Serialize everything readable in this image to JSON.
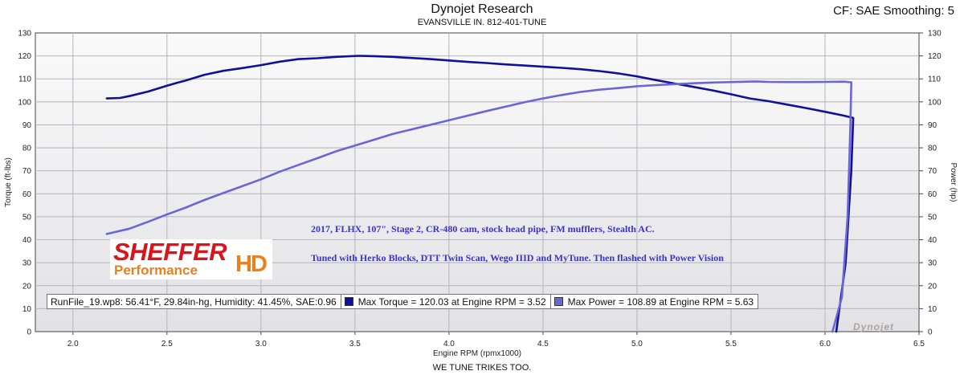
{
  "header": {
    "title": "Dynojet Research",
    "subtitle": "EVANSVILLE IN. 812-401-TUNE",
    "cf_label": "CF: SAE Smoothing: 5"
  },
  "footer": {
    "text": "WE TUNE TRIKES TOO."
  },
  "annotations": {
    "line1": "2017, FLHX, 107\", Stage 2, CR-480 cam, stock head pipe, FM mufflers, Stealth AC.",
    "line2": "Tuned with Herko Blocks, DTT Twin Scan, Wego IIID and MyTune. Then flashed with Power Vision"
  },
  "logo": {
    "sheffer": "SHEFFER",
    "performance": "Performance",
    "hd": "HD"
  },
  "watermark": "Dynojet",
  "legend": {
    "runfile": "RunFile_19.wp8: 56.41°F, 29.84in-hg, Humidity: 41.45%, SAE:0.96",
    "torque": "Max Torque = 120.03 at Engine RPM = 3.52",
    "power": "Max Power = 108.89 at Engine RPM = 5.63"
  },
  "colors": {
    "torque": "#10109a",
    "power": "#6a66d8",
    "plot_bg_top": "#fafafa",
    "plot_bg_bottom": "#e2e2e6"
  },
  "chart_data": {
    "type": "line",
    "xlabel": "Engine RPM (rpmx1000)",
    "ylabel": "Torque (ft-lbs)",
    "y2label": "Power (hp)",
    "xlim": [
      1.8,
      6.5
    ],
    "ylim": [
      0,
      130
    ],
    "y2lim": [
      0,
      130
    ],
    "xticks": [
      2.0,
      2.5,
      3.0,
      3.5,
      4.0,
      4.5,
      5.0,
      5.5,
      6.0,
      6.5
    ],
    "xtick_labels": [
      "2.0",
      "2.5",
      "3.0",
      "3.5",
      "4.0",
      "4.5",
      "5.0",
      "5.5",
      "6.0",
      "6.5"
    ],
    "yticks": [
      0,
      10,
      20,
      30,
      40,
      50,
      60,
      70,
      80,
      90,
      100,
      110,
      120,
      130
    ],
    "ytick_labels": [
      "0",
      "10",
      "20",
      "30",
      "40",
      "50",
      "60",
      "70",
      "80",
      "90",
      "100",
      "110",
      "120",
      "130"
    ],
    "grid": true,
    "series": [
      {
        "key": "torque",
        "x": [
          2.18,
          2.25,
          2.3,
          2.4,
          2.5,
          2.55,
          2.6,
          2.7,
          2.8,
          2.9,
          3.0,
          3.1,
          3.2,
          3.3,
          3.4,
          3.52,
          3.6,
          3.7,
          3.8,
          3.9,
          4.0,
          4.1,
          4.2,
          4.3,
          4.4,
          4.5,
          4.6,
          4.7,
          4.8,
          4.9,
          5.0,
          5.1,
          5.2,
          5.3,
          5.4,
          5.5,
          5.6,
          5.7,
          5.8,
          5.9,
          6.0,
          6.1,
          6.15
        ],
        "y": [
          101.5,
          101.7,
          102.5,
          104.5,
          107.0,
          108.2,
          109.3,
          111.8,
          113.5,
          114.7,
          116.0,
          117.5,
          118.6,
          119.0,
          119.6,
          120.03,
          119.9,
          119.6,
          119.1,
          118.6,
          118.0,
          117.4,
          116.9,
          116.3,
          115.8,
          115.3,
          114.8,
          114.2,
          113.4,
          112.4,
          111.1,
          109.5,
          108.0,
          106.5,
          105.0,
          103.3,
          101.5,
          100.3,
          98.8,
          97.3,
          95.7,
          94.0,
          93.0
        ]
      },
      {
        "key": "power",
        "x": [
          2.18,
          2.3,
          2.4,
          2.5,
          2.6,
          2.7,
          2.8,
          2.9,
          3.0,
          3.1,
          3.2,
          3.3,
          3.4,
          3.5,
          3.6,
          3.7,
          3.8,
          3.9,
          4.0,
          4.1,
          4.2,
          4.3,
          4.4,
          4.5,
          4.6,
          4.7,
          4.8,
          4.9,
          5.0,
          5.1,
          5.2,
          5.3,
          5.4,
          5.5,
          5.63,
          5.7,
          5.8,
          5.9,
          6.0,
          6.1,
          6.14
        ],
        "y": [
          42.5,
          44.8,
          47.8,
          51.0,
          54.0,
          57.3,
          60.3,
          63.3,
          66.3,
          69.6,
          72.6,
          75.5,
          78.5,
          81.0,
          83.5,
          86.0,
          88.0,
          90.0,
          92.0,
          94.0,
          96.0,
          97.9,
          99.8,
          101.5,
          103.0,
          104.3,
          105.3,
          106.0,
          106.8,
          107.3,
          107.7,
          108.1,
          108.4,
          108.6,
          108.89,
          108.7,
          108.6,
          108.6,
          108.7,
          108.8,
          108.5
        ]
      }
    ]
  }
}
